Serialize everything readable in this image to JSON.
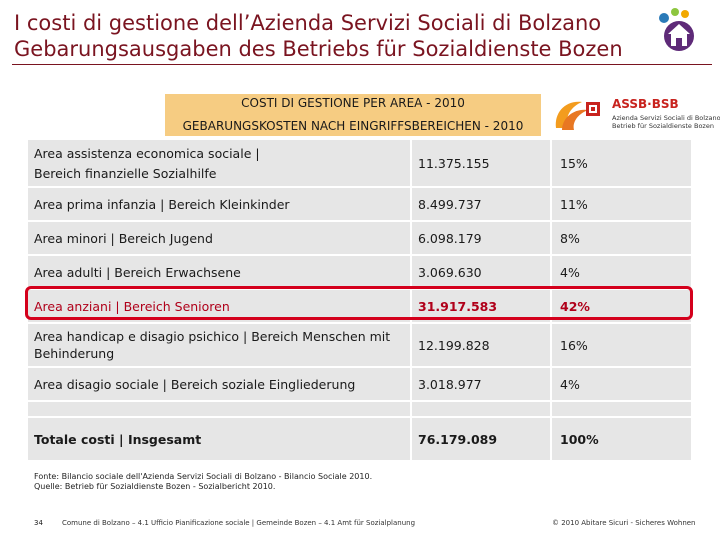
{
  "header": {
    "title_line1": "I costi di gestione dell’Azienda Servizi Sociali di Bolzano",
    "title_line2": "Gebarungsausgaben des Betriebs für Sozialdienste Bozen",
    "title_color": "#7a1420"
  },
  "table_header": {
    "line1": "COSTI DI GESTIONE PER AREA - 2010",
    "line2": "GEBARUNGSKOSTEN NACH EINGRIFFSBEREICHEN - 2010",
    "color": "#f6cc82"
  },
  "brand": {
    "name": "ASSB·BSB",
    "sub1": "Azienda Servizi Sociali di Bolzano",
    "sub2": "Betrieb für Sozialdienste Bozen"
  },
  "rows": [
    {
      "area_line1": "Area assistenza economica sociale |",
      "area_line2": "Bereich finanzielle Sozialhilfe",
      "amount": "11.375.155",
      "percent": "15%"
    },
    {
      "area": "Area prima infanzia | Bereich Kleinkinder",
      "amount": "8.499.737",
      "percent": "11%"
    },
    {
      "area": "Area minori | Bereich Jugend",
      "amount": "6.098.179",
      "percent": "8%"
    },
    {
      "area": "Area adulti | Bereich Erwachsene",
      "amount": "3.069.630",
      "percent": "4%"
    },
    {
      "area": "Area anziani | Bereich Senioren",
      "amount": "31.917.583",
      "percent": "42%"
    },
    {
      "area": "Area handicap e disagio psichico | Bereich Menschen mit Behinderung",
      "amount": "12.199.828",
      "percent": "16%"
    },
    {
      "area": "Area disagio sociale | Bereich soziale Eingliederung",
      "amount": "3.018.977",
      "percent": "4%"
    }
  ],
  "total": {
    "label": "Totale costi | Insgesamt",
    "amount": "76.179.089",
    "percent": "100%"
  },
  "source": {
    "line1": "Fonte: Bilancio sociale dell'Azienda Servizi Sociali di Bolzano - Bilancio Sociale 2010.",
    "line2": "Quelle: Betrieb für Sozialdienste Bozen - Sozialbericht 2010."
  },
  "footer": {
    "page_number": "34",
    "middle": "Comune di Bolzano – 4.1 Ufficio Pianificazione sociale | Gemeinde Bozen – 4.1 Amt für Sozialplanung",
    "right": "© 2010 Abitare Sicuri - Sicheres Wohnen"
  },
  "highlight_color": "#d4001c"
}
